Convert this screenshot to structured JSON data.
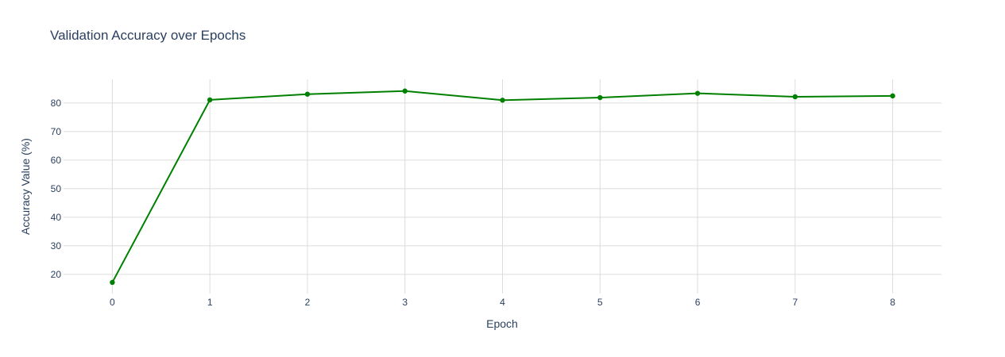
{
  "chart_data": {
    "type": "line",
    "title": "Validation Accuracy over Epochs",
    "xlabel": "Epoch",
    "ylabel": "Accuracy Value (%)",
    "x": [
      0,
      1,
      2,
      3,
      4,
      5,
      6,
      7,
      8
    ],
    "series": [
      {
        "values": [
          17.2,
          81.1,
          83.1,
          84.2,
          81.0,
          81.9,
          83.4,
          82.2,
          82.5
        ],
        "color": "#008000",
        "mode": "lines+markers"
      }
    ],
    "xticks": [
      "0",
      "1",
      "2",
      "3",
      "4",
      "5",
      "6",
      "7",
      "8"
    ],
    "yticks": [
      "20",
      "30",
      "40",
      "50",
      "60",
      "70",
      "80"
    ],
    "ytick_values": [
      20,
      30,
      40,
      50,
      60,
      70,
      80
    ],
    "xlim": [
      -0.5,
      8.5
    ],
    "ylim": [
      13.3,
      88.3
    ],
    "grid": true,
    "legend": "none"
  }
}
